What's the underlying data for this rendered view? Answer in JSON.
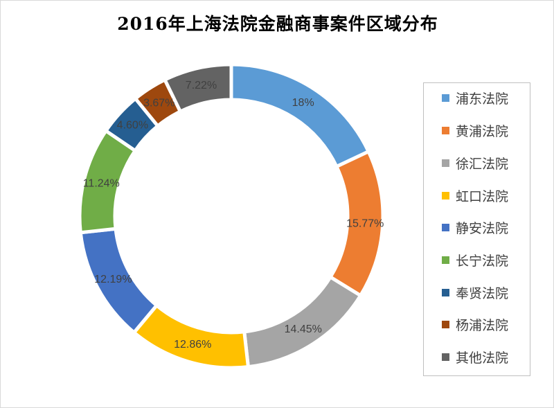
{
  "chart_data": {
    "type": "pie",
    "style": "donut",
    "title": "2016年上海法院金融商事案件区域分布",
    "categories": [
      "浦东法院",
      "黄浦法院",
      "徐汇法院",
      "虹口法院",
      "静安法院",
      "长宁法院",
      "奉贤法院",
      "杨浦法院",
      "其他法院"
    ],
    "values": [
      18,
      15.77,
      14.45,
      12.86,
      12.19,
      11.24,
      4.6,
      3.67,
      7.22
    ],
    "labels": [
      "18%",
      "15.77%",
      "14.45%",
      "12.86%",
      "12.19%",
      "11.24%",
      "4.60%",
      "3.67%",
      "7.22%"
    ],
    "colors": [
      "#5B9BD5",
      "#ED7D31",
      "#A5A5A5",
      "#FFC000",
      "#4472C4",
      "#70AD47",
      "#255E91",
      "#9E480E",
      "#636363"
    ],
    "unit": "%",
    "legend": "right"
  }
}
